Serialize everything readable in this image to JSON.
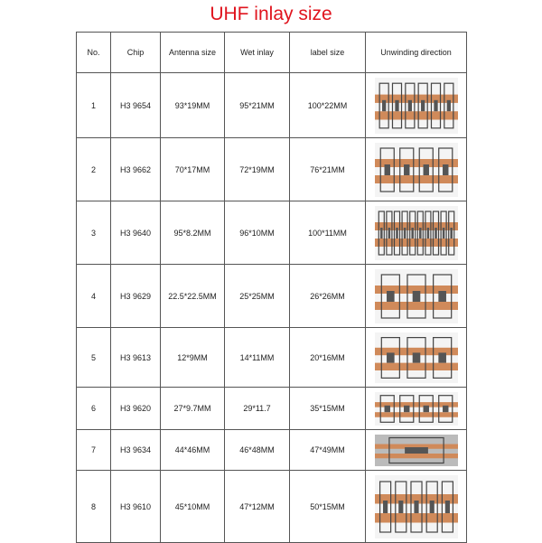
{
  "header": {
    "title": "UHF inlay size"
  },
  "table": {
    "headers": [
      "No.",
      "Chip",
      "Antenna size",
      "Wet inlay",
      "label size",
      "Unwinding direction"
    ],
    "rows": [
      [
        "1",
        "H3 9654",
        "93*19MM",
        "95*21MM",
        "100*22MM"
      ],
      [
        "2",
        "H3 9662",
        "70*17MM",
        "72*19MM",
        "76*21MM"
      ],
      [
        "3",
        "H3 9640",
        "95*8.2MM",
        "96*10MM",
        "100*11MM"
      ],
      [
        "4",
        "H3 9629",
        "22.5*22.5MM",
        "25*25MM",
        "26*26MM"
      ],
      [
        "5",
        "H3 9613",
        "12*9MM",
        "14*11MM",
        "20*16MM"
      ],
      [
        "6",
        "H3 9620",
        "27*9.7MM",
        "29*11.7",
        "35*15MM"
      ],
      [
        "7",
        "H3 9634",
        "44*46MM",
        "46*48MM",
        "47*49MM"
      ],
      [
        "8",
        "H3 9610",
        "45*10MM",
        "47*12MM",
        "50*15MM"
      ]
    ]
  }
}
